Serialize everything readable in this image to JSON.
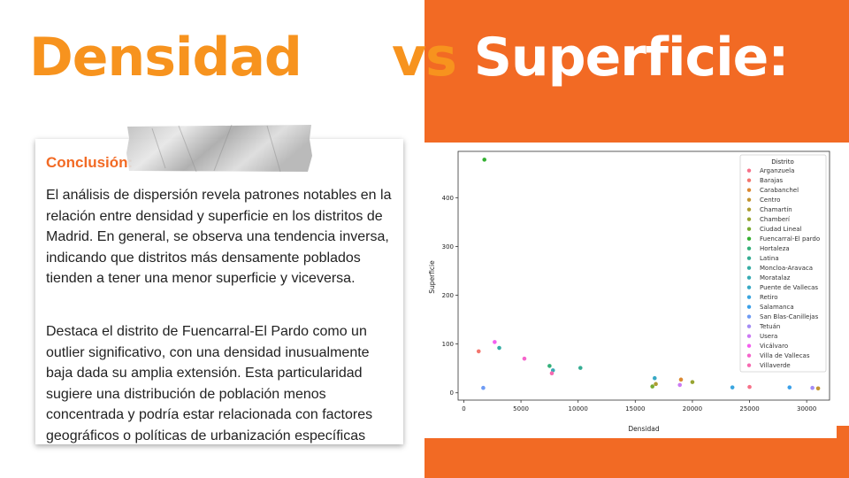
{
  "slide": {
    "title_left": "Densidad",
    "title_vs": "vs",
    "title_right": "Superficie:",
    "colors": {
      "accent_orange": "#f26a24",
      "title_orange": "#f7931e"
    }
  },
  "card": {
    "heading": "Conclusión:",
    "paragraph1": "El análisis de dispersión revela patrones notables en la relación entre densidad y superficie en los distritos de Madrid. En general, se observa una tendencia inversa, indicando que distritos más densamente poblados tienden a tener una menor superficie y viceversa.",
    "paragraph2": "Destaca el distrito de Fuencarral-El Pardo como un outlier significativo, con una densidad inusualmente baja dada su amplia extensión. Esta particularidad sugiere una distribución de población menos concentrada y podría estar relacionada con factores geográficos o políticas de urbanización específicas"
  },
  "chart_data": {
    "type": "scatter",
    "xlabel": "Densidad",
    "ylabel": "Superficie",
    "xlim": [
      -500,
      32000
    ],
    "ylim": [
      -15,
      495
    ],
    "xticks": [
      0,
      5000,
      10000,
      15000,
      20000,
      25000,
      30000
    ],
    "yticks": [
      0,
      100,
      200,
      300,
      400
    ],
    "grid": false,
    "legend_title": "Distrito",
    "legend_position": "top-right",
    "series": [
      {
        "name": "Arganzuela",
        "color": "#f77189",
        "x": 25000,
        "y": 12
      },
      {
        "name": "Barajas",
        "color": "#f3766e",
        "x": 1300,
        "y": 85
      },
      {
        "name": "Carabanchel",
        "color": "#dc8932",
        "x": 19000,
        "y": 27
      },
      {
        "name": "Centro",
        "color": "#c39532",
        "x": 31000,
        "y": 9
      },
      {
        "name": "Chamartín",
        "color": "#ae9d31",
        "x": 16800,
        "y": 18
      },
      {
        "name": "Chamberí",
        "color": "#97a431",
        "x": 20000,
        "y": 22
      },
      {
        "name": "Ciudad Lineal",
        "color": "#77ab31",
        "x": 16500,
        "y": 13
      },
      {
        "name": "Fuencarral-El pardo",
        "color": "#33b031",
        "x": 1800,
        "y": 478
      },
      {
        "name": "Hortaleza",
        "color": "#33b07a",
        "x": 7500,
        "y": 55
      },
      {
        "name": "Latina",
        "color": "#35ad93",
        "x": 10200,
        "y": 51
      },
      {
        "name": "Moncloa-Aravaca",
        "color": "#36ada4",
        "x": 3100,
        "y": 92
      },
      {
        "name": "Moratalaz",
        "color": "#37abb4",
        "x": 7800,
        "y": 46
      },
      {
        "name": "Puente de Vallecas",
        "color": "#38a9c5",
        "x": 16700,
        "y": 30
      },
      {
        "name": "Retiro",
        "color": "#3aa5df",
        "x": 23500,
        "y": 11
      },
      {
        "name": "Salamanca",
        "color": "#3aa0e9",
        "x": 28500,
        "y": 11
      },
      {
        "name": "San Blas-Canillejas",
        "color": "#6e9bf4",
        "x": 1700,
        "y": 10
      },
      {
        "name": "Tetuán",
        "color": "#a48cf4",
        "x": 30500,
        "y": 10
      },
      {
        "name": "Usera",
        "color": "#cc7af4",
        "x": 18900,
        "y": 16
      },
      {
        "name": "Vicálvaro",
        "color": "#f45fef",
        "x": 2700,
        "y": 104
      },
      {
        "name": "Villa de Vallecas",
        "color": "#f565cc",
        "x": 5300,
        "y": 70
      },
      {
        "name": "Villaverde",
        "color": "#f66ab1",
        "x": 7700,
        "y": 40
      }
    ]
  }
}
